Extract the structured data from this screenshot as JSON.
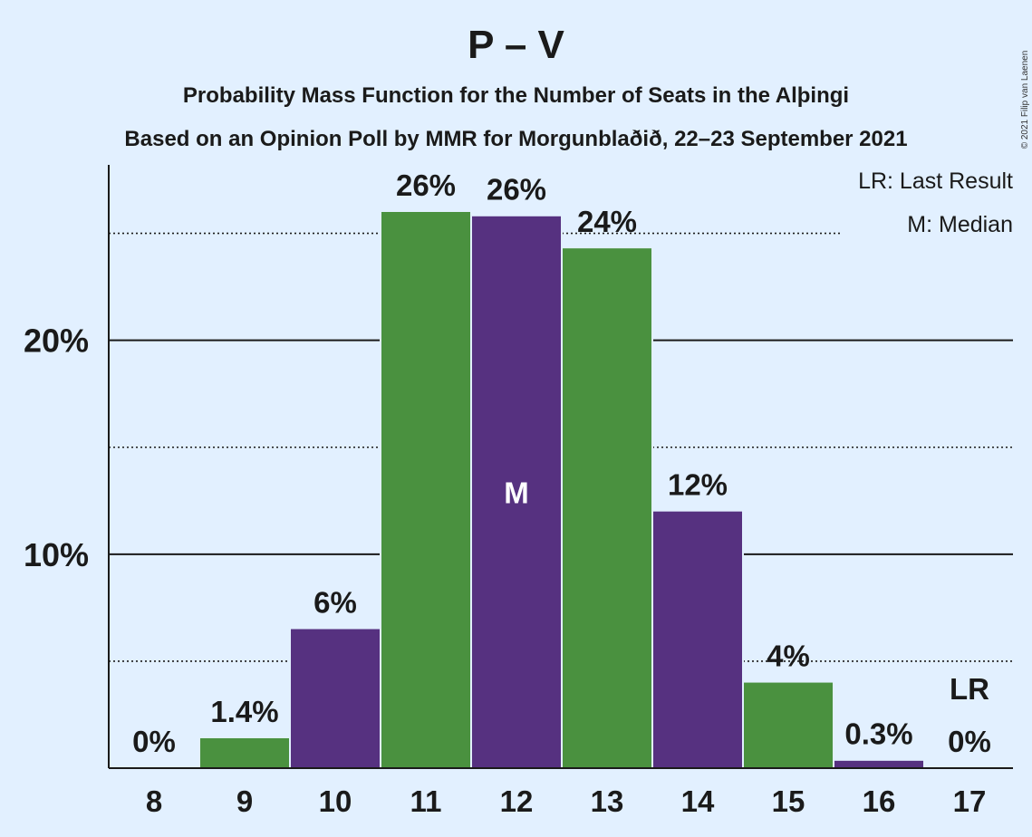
{
  "chart_data": {
    "type": "bar",
    "title": "P – V",
    "subtitle_1": "Probability Mass Function for the Number of Seats in the Alþingi",
    "subtitle_2": "Based on an Opinion Poll by MMR for Morgunblaðið, 22–23 September 2021",
    "copyright": "© 2021 Filip van Laenen",
    "categories": [
      "8",
      "9",
      "10",
      "11",
      "12",
      "13",
      "14",
      "15",
      "16",
      "17"
    ],
    "values": [
      0,
      1.4,
      6.5,
      26,
      25.8,
      24.3,
      12,
      4,
      0.35,
      0
    ],
    "value_labels": [
      "0%",
      "1.4%",
      "6%",
      "26%",
      "26%",
      "24%",
      "12%",
      "4%",
      "0.3%",
      "0%"
    ],
    "bar_colors": [
      "#4a913f",
      "#4a913f",
      "#563180",
      "#4a913f",
      "#563180",
      "#4a913f",
      "#563180",
      "#4a913f",
      "#563180",
      "#4a913f"
    ],
    "ylim": [
      0,
      28.2
    ],
    "yticks_major": [
      10,
      20
    ],
    "ytick_labels": [
      "10%",
      "20%"
    ],
    "yticks_minor": [
      5,
      15,
      25
    ],
    "median_index": 4,
    "median_marker": "M",
    "last_result_index": 9,
    "last_result_marker": "LR",
    "legend": {
      "position": "top-right",
      "entries": [
        "LR: Last Result",
        "M: Median"
      ]
    },
    "colors": {
      "background": "#e2f0ff",
      "green": "#4a913f",
      "purple": "#563180",
      "text": "#1a1a1a"
    }
  }
}
